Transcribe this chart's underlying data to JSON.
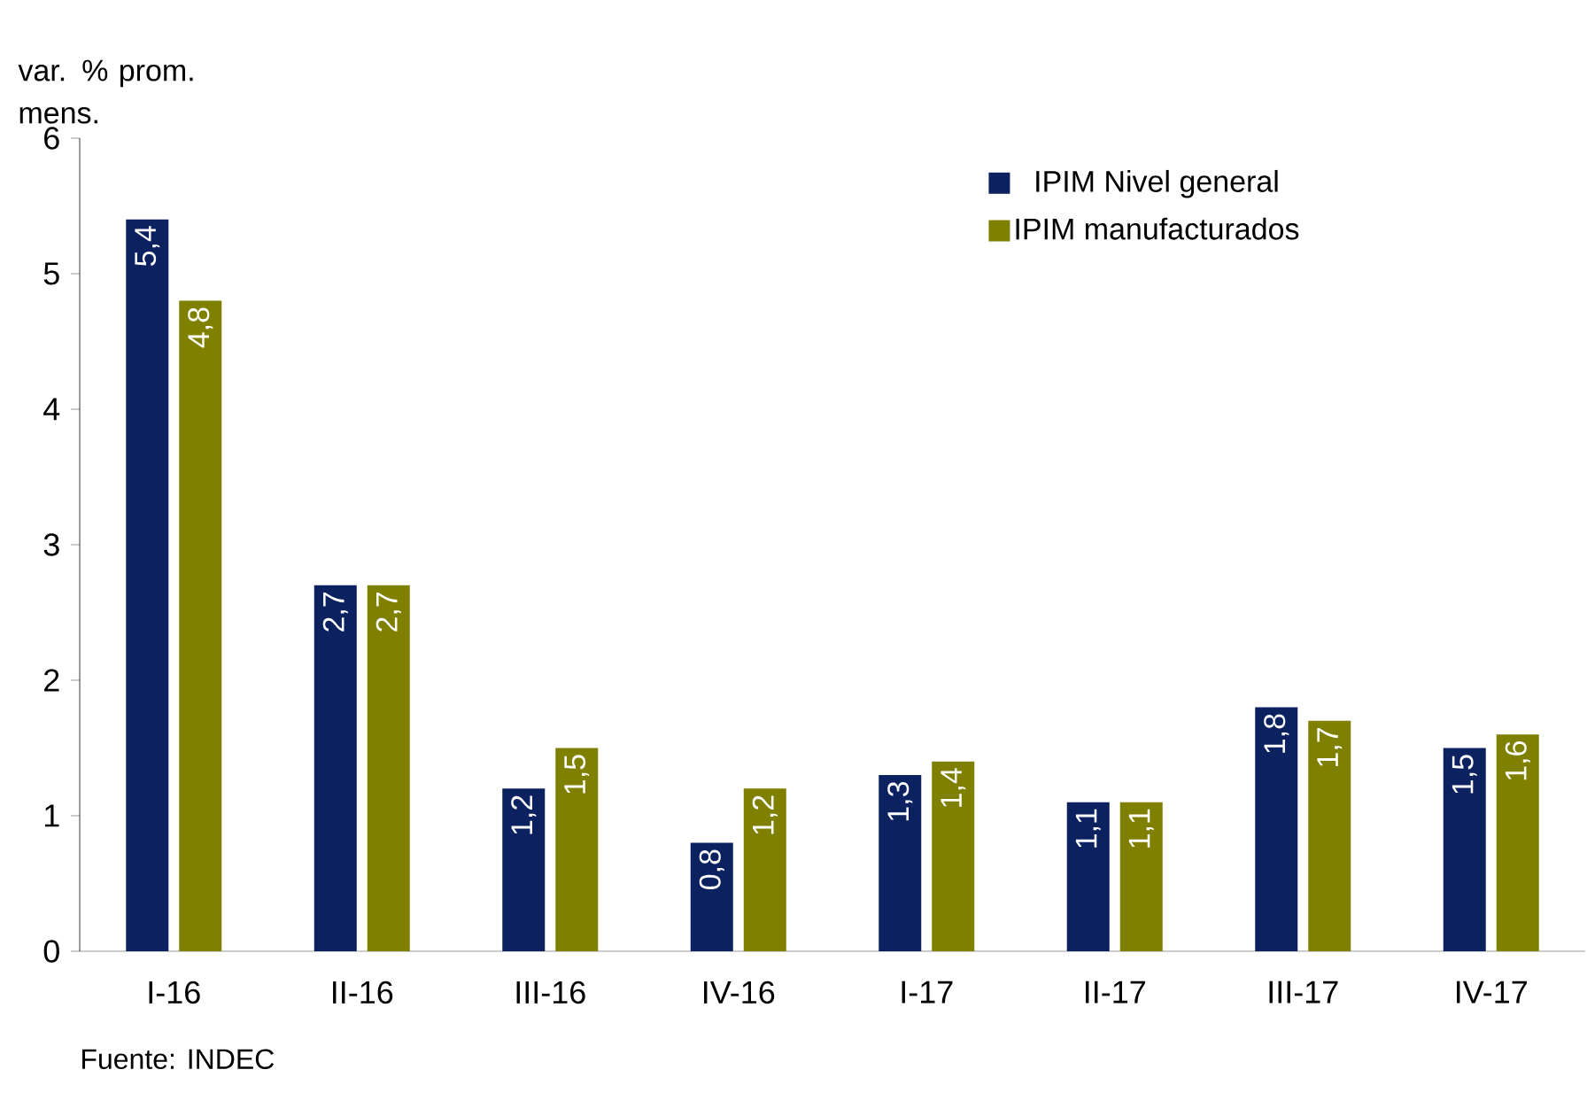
{
  "chart_data": {
    "type": "bar",
    "ylabel": "var. % prom. mens.",
    "categories": [
      "I-16",
      "II-16",
      "III-16",
      "IV-16",
      "I-17",
      "II-17",
      "III-17",
      "IV-17"
    ],
    "series": [
      {
        "name": "IPIM Nivel general",
        "color": "#0b2160",
        "values": [
          5.4,
          2.7,
          1.2,
          0.8,
          1.3,
          1.1,
          1.8,
          1.5
        ],
        "value_labels": [
          "5,4",
          "2,7",
          "1,2",
          "0,8",
          "1,3",
          "1,1",
          "1,8",
          "1,5"
        ]
      },
      {
        "name": "IPIM manufacturados",
        "color": "#7f7f00",
        "values": [
          4.8,
          2.7,
          1.5,
          1.2,
          1.4,
          1.1,
          1.7,
          1.6
        ],
        "value_labels": [
          "4,8",
          "2,7",
          "1,5",
          "1,2",
          "1,4",
          "1,1",
          "1,7",
          "1,6"
        ]
      }
    ],
    "ylim": [
      0,
      6
    ],
    "yticks": [
      0,
      1,
      2,
      3,
      4,
      5,
      6
    ],
    "grid": false,
    "legend": "top right",
    "annotations": [
      "Fuente: INDEC"
    ]
  }
}
